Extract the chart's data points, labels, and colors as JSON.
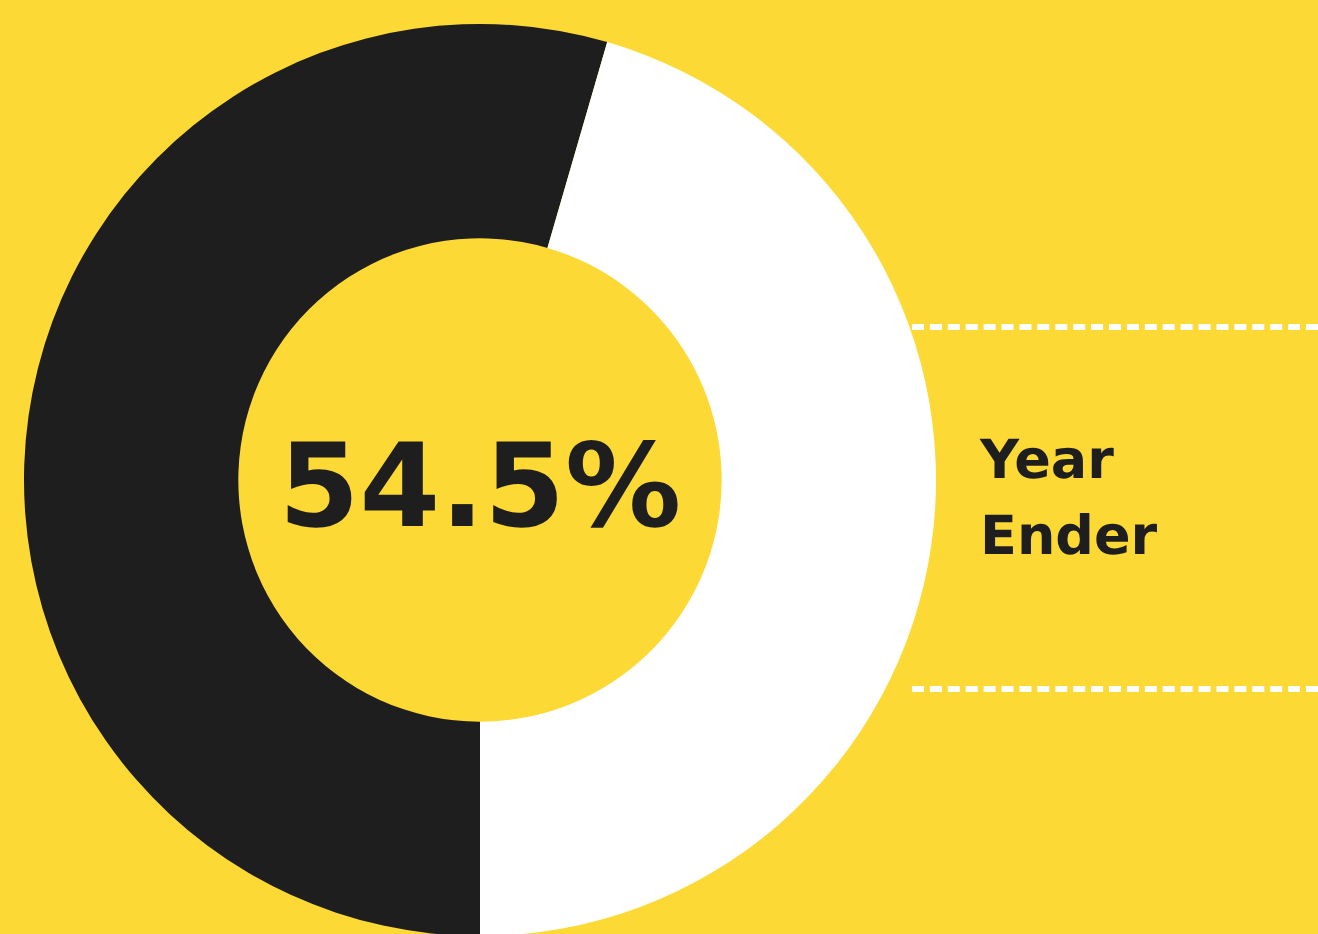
{
  "chart_data": {
    "type": "donut",
    "categories": [
      null,
      null
    ],
    "values": [
      54.5,
      45.5
    ],
    "colors": [
      "#1e1e1e",
      "#ffffff"
    ],
    "value_labels": [
      "54.5%",
      null
    ],
    "annotations": [
      "Year Ender"
    ],
    "legend": false
  }
}
